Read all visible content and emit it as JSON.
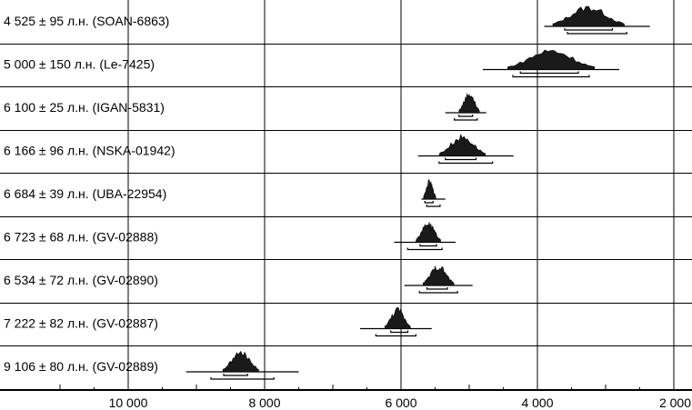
{
  "chart_data": {
    "type": "scatter",
    "title": "",
    "xlabel": "",
    "ylabel": "",
    "x_direction": "reversed",
    "xlim": [
      11500,
      2000
    ],
    "x_ticks": [
      10000,
      8000,
      6000,
      4000,
      2000
    ],
    "x_tick_labels": [
      "10 000",
      "8 000",
      "6 000",
      "4 000",
      "2 000"
    ],
    "grid": true,
    "series": [
      {
        "label": "4 525 ± 95 л.н. (SOAN-6863)",
        "median": 3250,
        "range_68": [
          3600,
          2900
        ],
        "range_95": [
          3900,
          2350
        ]
      },
      {
        "label": "5 000 ± 150 л.н. (Le-7425)",
        "median": 3800,
        "range_68": [
          4250,
          3400
        ],
        "range_95": [
          4800,
          2800
        ]
      },
      {
        "label": "6 100 ± 25 л.н. (IGAN-5831)",
        "median": 5000,
        "range_68": [
          5150,
          4950
        ],
        "range_95": [
          5350,
          4750
        ]
      },
      {
        "label": "6 166 ± 96 л.н. (NSKA-01942)",
        "median": 5100,
        "range_68": [
          5350,
          4900
        ],
        "range_95": [
          5750,
          4350
        ]
      },
      {
        "label": "6 684 ± 39 л.н. (UBA-22954)",
        "median": 5580,
        "range_68": [
          5650,
          5530
        ],
        "range_95": [
          5700,
          5350
        ]
      },
      {
        "label": "6 723 ± 68 л.н. (GV-02888)",
        "median": 5600,
        "range_68": [
          5720,
          5480
        ],
        "range_95": [
          6100,
          5200
        ]
      },
      {
        "label": "6 534 ± 72 л.н. (GV-02890)",
        "median": 5450,
        "range_68": [
          5620,
          5320
        ],
        "range_95": [
          5950,
          4950
        ]
      },
      {
        "label": "7 222 ± 82 л.н. (GV-02887)",
        "median": 6050,
        "range_68": [
          6150,
          5900
        ],
        "range_95": [
          6600,
          5550
        ]
      },
      {
        "label": "9 106 ± 80 л.н. (GV-02889)",
        "median": 8350,
        "range_68": [
          8600,
          8250
        ],
        "range_95": [
          9150,
          7500
        ]
      }
    ]
  }
}
